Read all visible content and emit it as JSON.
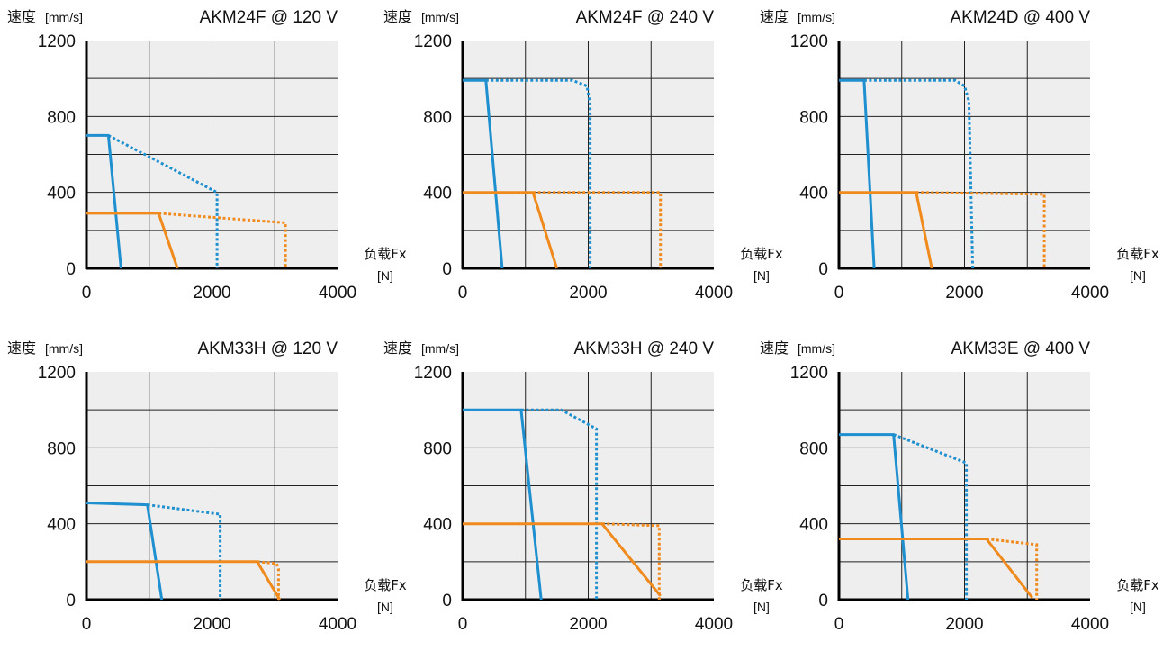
{
  "colors": {
    "plot_background": "#eeeeee",
    "grid": "#222222",
    "series_blue": "#1e8fcf",
    "series_orange": "#f08a1c"
  },
  "chart_data": [
    {
      "type": "line",
      "title": "AKM24F @ 120 V",
      "ylabel": "速度",
      "yunit": "[mm/s]",
      "xlabel": "负载Fx",
      "xunit": "[N]",
      "xlim": [
        0,
        4000
      ],
      "ylim": [
        0,
        1200
      ],
      "xticks": [
        "0",
        "2000",
        "4000"
      ],
      "yticks": [
        "0",
        "400",
        "800",
        "1200"
      ],
      "grid": true,
      "series": [
        {
          "color": "#1e8fcf",
          "style": "solid",
          "x": [
            0,
            350,
            550
          ],
          "y": [
            700,
            700,
            0
          ]
        },
        {
          "color": "#1e8fcf",
          "style": "dotted",
          "x": [
            350,
            2080,
            2080
          ],
          "y": [
            700,
            400,
            0
          ]
        },
        {
          "color": "#f08a1c",
          "style": "solid",
          "x": [
            0,
            1150,
            1450
          ],
          "y": [
            290,
            290,
            0
          ]
        },
        {
          "color": "#f08a1c",
          "style": "dotted",
          "x": [
            1150,
            3170,
            3170
          ],
          "y": [
            290,
            240,
            0
          ]
        }
      ]
    },
    {
      "type": "line",
      "title": "AKM24F @  240 V",
      "ylabel": "速度",
      "yunit": "[mm/s]",
      "xlabel": "负载Fx",
      "xunit": "[N]",
      "xlim": [
        0,
        4000
      ],
      "ylim": [
        0,
        1200
      ],
      "xticks": [
        "0",
        "2000",
        "4000"
      ],
      "yticks": [
        "0",
        "400",
        "800",
        "1200"
      ],
      "grid": true,
      "series": [
        {
          "color": "#1e8fcf",
          "style": "solid",
          "x": [
            0,
            370,
            630
          ],
          "y": [
            990,
            990,
            0
          ]
        },
        {
          "color": "#1e8fcf",
          "style": "dotted",
          "x": [
            370,
            1750,
            1980,
            2030,
            2030
          ],
          "y": [
            990,
            990,
            960,
            860,
            0
          ]
        },
        {
          "color": "#f08a1c",
          "style": "solid",
          "x": [
            0,
            1120,
            1500
          ],
          "y": [
            400,
            400,
            0
          ]
        },
        {
          "color": "#f08a1c",
          "style": "dotted",
          "x": [
            1120,
            3150,
            3150
          ],
          "y": [
            400,
            400,
            0
          ]
        }
      ]
    },
    {
      "type": "line",
      "title": "AKM24D @ 400 V",
      "ylabel": "速度",
      "yunit": "[mm/s]",
      "xlabel": "负载Fx",
      "xunit": "[N]",
      "xlim": [
        0,
        4000
      ],
      "ylim": [
        0,
        1200
      ],
      "xticks": [
        "0",
        "2000",
        "4000"
      ],
      "yticks": [
        "0",
        "400",
        "800",
        "1200"
      ],
      "grid": true,
      "series": [
        {
          "color": "#1e8fcf",
          "style": "solid",
          "x": [
            0,
            400,
            560
          ],
          "y": [
            990,
            990,
            0
          ]
        },
        {
          "color": "#1e8fcf",
          "style": "dotted",
          "x": [
            400,
            1850,
            2000,
            2070,
            2130
          ],
          "y": [
            990,
            990,
            960,
            880,
            0
          ]
        },
        {
          "color": "#f08a1c",
          "style": "solid",
          "x": [
            0,
            1230,
            1480
          ],
          "y": [
            400,
            400,
            0
          ]
        },
        {
          "color": "#f08a1c",
          "style": "dotted",
          "x": [
            1230,
            3270,
            3270
          ],
          "y": [
            400,
            390,
            0
          ]
        }
      ]
    },
    {
      "type": "line",
      "title": "AKM33H @ 120 V",
      "ylabel": "速度",
      "yunit": "[mm/s]",
      "xlabel": "负载Fx",
      "xunit": "[N]",
      "xlim": [
        0,
        4000
      ],
      "ylim": [
        0,
        1200
      ],
      "xticks": [
        "0",
        "2000",
        "4000"
      ],
      "yticks": [
        "0",
        "400",
        "800",
        "1200"
      ],
      "grid": true,
      "series": [
        {
          "color": "#1e8fcf",
          "style": "solid",
          "x": [
            0,
            970,
            1200
          ],
          "y": [
            510,
            500,
            0
          ]
        },
        {
          "color": "#1e8fcf",
          "style": "dotted",
          "x": [
            970,
            2130,
            2130
          ],
          "y": [
            500,
            450,
            0
          ]
        },
        {
          "color": "#f08a1c",
          "style": "solid",
          "x": [
            0,
            2720,
            3080
          ],
          "y": [
            200,
            200,
            0
          ]
        },
        {
          "color": "#f08a1c",
          "style": "dotted",
          "x": [
            2720,
            3030,
            3060,
            3060
          ],
          "y": [
            200,
            190,
            160,
            0
          ]
        }
      ]
    },
    {
      "type": "line",
      "title": "AKM33H @ 240 V",
      "ylabel": "速度",
      "yunit": "[mm/s]",
      "xlabel": "负载Fx",
      "xunit": "[N]",
      "xlim": [
        0,
        4000
      ],
      "ylim": [
        0,
        1200
      ],
      "xticks": [
        "0",
        "2000",
        "4000"
      ],
      "yticks": [
        "0",
        "400",
        "800",
        "1200"
      ],
      "grid": true,
      "series": [
        {
          "color": "#1e8fcf",
          "style": "solid",
          "x": [
            0,
            930,
            1250
          ],
          "y": [
            1000,
            1000,
            0
          ]
        },
        {
          "color": "#1e8fcf",
          "style": "dotted",
          "x": [
            930,
            1570,
            2130,
            2130
          ],
          "y": [
            1000,
            1000,
            900,
            0
          ]
        },
        {
          "color": "#f08a1c",
          "style": "solid",
          "x": [
            0,
            2220,
            3150
          ],
          "y": [
            400,
            400,
            20
          ]
        },
        {
          "color": "#f08a1c",
          "style": "dotted",
          "x": [
            2220,
            3130,
            3130
          ],
          "y": [
            400,
            390,
            0
          ]
        }
      ]
    },
    {
      "type": "line",
      "title": "AKM33E @ 400 V",
      "ylabel": "速度",
      "yunit": "[mm/s]",
      "xlabel": "负载Fx",
      "xunit": "[N]",
      "xlim": [
        0,
        4000
      ],
      "ylim": [
        0,
        1200
      ],
      "xticks": [
        "0",
        "2000",
        "4000"
      ],
      "yticks": [
        "0",
        "400",
        "800",
        "1200"
      ],
      "grid": true,
      "series": [
        {
          "color": "#1e8fcf",
          "style": "solid",
          "x": [
            0,
            870,
            1100
          ],
          "y": [
            870,
            870,
            0
          ]
        },
        {
          "color": "#1e8fcf",
          "style": "dotted",
          "x": [
            870,
            2030,
            2030
          ],
          "y": [
            870,
            720,
            0
          ]
        },
        {
          "color": "#f08a1c",
          "style": "solid",
          "x": [
            0,
            2350,
            3080
          ],
          "y": [
            320,
            320,
            10
          ]
        },
        {
          "color": "#f08a1c",
          "style": "dotted",
          "x": [
            2350,
            3150,
            3150
          ],
          "y": [
            320,
            290,
            0
          ]
        }
      ]
    }
  ]
}
